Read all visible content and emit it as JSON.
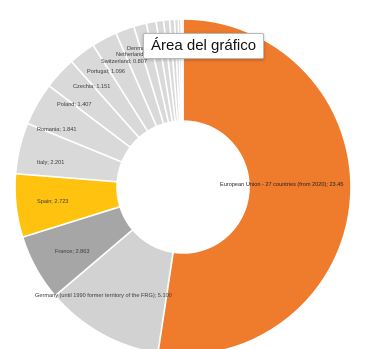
{
  "tooltip": {
    "text": "Área del gráfico"
  },
  "chart_data": {
    "type": "pie",
    "donut": true,
    "slices": [
      {
        "label": "European Union - 27 countries (from 2020); 23.45",
        "value": 23.45,
        "color": "#ef7b2c"
      },
      {
        "label": "Germany (until 1990 former territory of the FRG); 5.100",
        "value": 5.1,
        "color": "#d2d2d2"
      },
      {
        "label": "France; 2.863",
        "value": 2.863,
        "color": "#a6a6a6"
      },
      {
        "label": "Spain; 2.723",
        "value": 2.723,
        "color": "#ffc20e"
      },
      {
        "label": "Italy; 2.201",
        "value": 2.201,
        "color": "#d9d9d9"
      },
      {
        "label": "Romania; 1.841",
        "value": 1.841,
        "color": "#d9d9d9"
      },
      {
        "label": "Poland; 1.407",
        "value": 1.407,
        "color": "#d9d9d9"
      },
      {
        "label": "Czechia; 1.151",
        "value": 1.151,
        "color": "#d9d9d9"
      },
      {
        "label": "Portugal; 1.096",
        "value": 1.096,
        "color": "#d9d9d9"
      },
      {
        "label": "Switzerland; 0.807",
        "value": 0.807,
        "color": "#d9d9d9"
      },
      {
        "label": "Netherlands",
        "value": 0.55,
        "color": "#d9d9d9"
      },
      {
        "label": "Denmark",
        "value": 0.42,
        "color": "#d9d9d9"
      },
      {
        "label": "",
        "value": 0.32,
        "color": "#d9d9d9"
      },
      {
        "label": "",
        "value": 0.26,
        "color": "#d9d9d9"
      },
      {
        "label": "",
        "value": 0.21,
        "color": "#d9d9d9"
      },
      {
        "label": "",
        "value": 0.16,
        "color": "#d9d9d9"
      },
      {
        "label": "",
        "value": 0.12,
        "color": "#d9d9d9"
      },
      {
        "label": "",
        "value": 0.08,
        "color": "#d9d9d9"
      }
    ]
  }
}
